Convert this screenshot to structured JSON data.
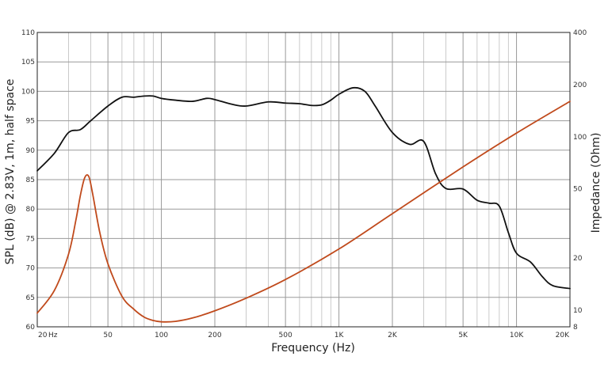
{
  "chart_data": {
    "type": "line",
    "title": "",
    "xlabel": "Frequency (Hz)",
    "ylabel": "SPL (dB) @ 2.83V, 1m, half space",
    "y2label": "Impedance (Ohm)",
    "xscale": "log",
    "xlim": [
      20,
      20000
    ],
    "ylim": [
      60,
      110
    ],
    "y2scale": "log",
    "y2lim": [
      8,
      400
    ],
    "grid": true,
    "x_ticks": [
      {
        "value": 20,
        "label": "20"
      },
      {
        "value": 50,
        "label": "50"
      },
      {
        "value": 100,
        "label": "100"
      },
      {
        "value": 200,
        "label": "200"
      },
      {
        "value": 500,
        "label": "500"
      },
      {
        "value": 1000,
        "label": "1K"
      },
      {
        "value": 2000,
        "label": "2K"
      },
      {
        "value": 5000,
        "label": "5K"
      },
      {
        "value": 10000,
        "label": "10K"
      },
      {
        "value": 20000,
        "label": "20K"
      }
    ],
    "x_unit_label": "Hz",
    "y_ticks": [
      60,
      65,
      70,
      75,
      80,
      85,
      90,
      95,
      100,
      105,
      110
    ],
    "y2_ticks": [
      8,
      10,
      20,
      50,
      100,
      200,
      400
    ],
    "series": [
      {
        "axis": "left",
        "color": "#111111",
        "x": [
          20,
          25,
          30,
          35,
          40,
          50,
          60,
          70,
          80,
          90,
          100,
          120,
          150,
          180,
          200,
          250,
          300,
          400,
          500,
          600,
          700,
          800,
          900,
          1000,
          1200,
          1400,
          1600,
          2000,
          2500,
          3000,
          3500,
          4000,
          5000,
          6000,
          7000,
          8000,
          9000,
          10000,
          12000,
          14000,
          16000,
          20000
        ],
        "y": [
          86.5,
          89.5,
          93,
          93.5,
          95,
          97.5,
          99,
          99,
          99.2,
          99.2,
          98.8,
          98.5,
          98.3,
          98.8,
          98.6,
          97.8,
          97.5,
          98.2,
          98.0,
          97.9,
          97.6,
          97.7,
          98.5,
          99.5,
          100.6,
          100.0,
          97.5,
          93,
          91,
          91.5,
          86,
          83.5,
          83.4,
          81.5,
          81,
          80.5,
          76,
          72.5,
          71,
          68.5,
          67,
          66.5
        ]
      },
      {
        "axis": "right",
        "color": "#c04a1c",
        "x": [
          20,
          25,
          30,
          33,
          35,
          37,
          39,
          41,
          45,
          50,
          60,
          70,
          80,
          90,
          100,
          120,
          150,
          200,
          300,
          500,
          1000,
          2000,
          5000,
          10000,
          20000
        ],
        "y": [
          9.6,
          13,
          21,
          33,
          46,
          58,
          59,
          47,
          28,
          18.5,
          12,
          10.1,
          9.1,
          8.7,
          8.55,
          8.6,
          9.0,
          9.9,
          11.7,
          15,
          22.5,
          36,
          67,
          105,
          160
        ]
      }
    ]
  }
}
